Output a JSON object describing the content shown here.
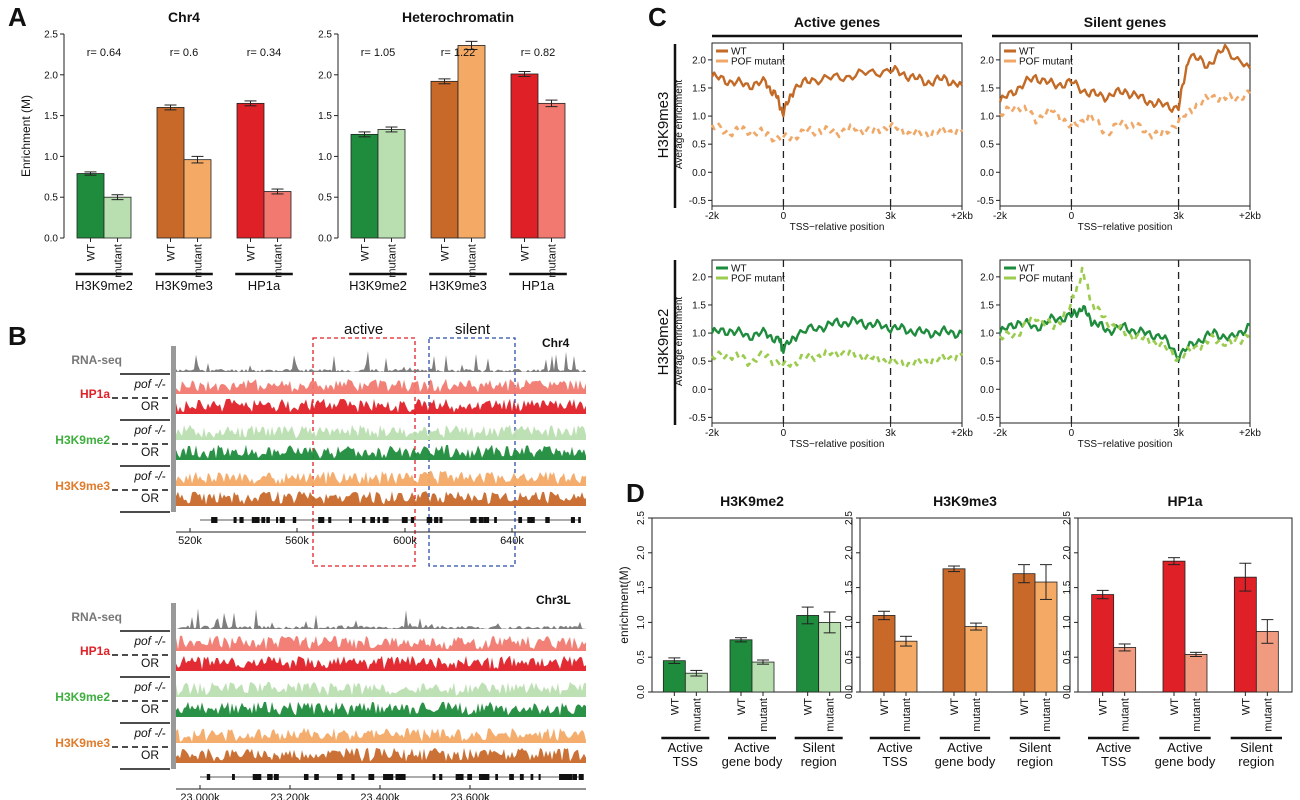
{
  "panel_labels": [
    "A",
    "B",
    "C",
    "D"
  ],
  "colors": {
    "h3k9me2_wt": "#1e8c3c",
    "h3k9me2_mut": "#b9dfb0",
    "h3k9me3_wt": "#c8692a",
    "h3k9me3_mut": "#f4a965",
    "hp1a_wt": "#e02027",
    "hp1a_mut": "#f2796f",
    "hp1a_mut_d": "#f09a80",
    "c_me3_wt": "#c26a26",
    "c_me3_mut": "#f0a868",
    "c_me2_wt": "#1e8c3c",
    "c_me2_mut": "#9ccc4f",
    "rnaseq": "#777777",
    "active_box": "#e02027",
    "silent_box": "#2b4fa8"
  },
  "panel_b": {
    "region_labels": {
      "active": "active",
      "silent": "silent"
    },
    "chromosomes": [
      {
        "name": "Chr4",
        "ticks": [
          "520k",
          "560k",
          "600k",
          "640k"
        ]
      },
      {
        "name": "Chr3L",
        "ticks": [
          "23,000k",
          "23,200k",
          "23,400k",
          "23,600k"
        ]
      }
    ],
    "tracks": [
      {
        "label": "RNA-seq",
        "sub": []
      },
      {
        "label": "HP1a",
        "sub": [
          "pof -/-",
          "OR"
        ]
      },
      {
        "label": "H3K9me2",
        "sub": [
          "pof -/-",
          "OR"
        ]
      },
      {
        "label": "H3K9me3",
        "sub": [
          "pof -/-",
          "OR"
        ]
      }
    ]
  },
  "chart_data": [
    {
      "panel": "A",
      "type": "bar",
      "title": "Chr4",
      "ylabel": "Enrichment (M)",
      "ylim": [
        0,
        2.5
      ],
      "yticks": [
        "0.0",
        "0.5",
        "1.0",
        "1.5",
        "2.0",
        "2.5"
      ],
      "groups": [
        "H3K9me2",
        "H3K9me3",
        "HP1a"
      ],
      "bar_labels": [
        "WT",
        "mutant"
      ],
      "r_labels": [
        "r= 0.64",
        "r= 0.6",
        "r= 0.34"
      ],
      "series": [
        {
          "name": "WT",
          "values": [
            0.79,
            1.6,
            1.65
          ],
          "errors": [
            0.02,
            0.03,
            0.03
          ]
        },
        {
          "name": "mutant",
          "values": [
            0.5,
            0.96,
            0.57
          ],
          "errors": [
            0.03,
            0.04,
            0.03
          ]
        }
      ]
    },
    {
      "panel": "A",
      "type": "bar",
      "title": "Heterochromatin",
      "ylim": [
        0,
        2.5
      ],
      "yticks": [
        "0.0",
        "0.5",
        "1.0",
        "1.5",
        "2.0",
        "2.5"
      ],
      "groups": [
        "H3K9me2",
        "H3K9me3",
        "HP1a"
      ],
      "bar_labels": [
        "WT",
        "mutant"
      ],
      "r_labels": [
        "r= 1.05",
        "r= 1.22",
        "r= 0.82"
      ],
      "series": [
        {
          "name": "WT",
          "values": [
            1.27,
            1.92,
            2.01
          ],
          "errors": [
            0.03,
            0.03,
            0.03
          ]
        },
        {
          "name": "mutant",
          "values": [
            1.33,
            2.36,
            1.65
          ],
          "errors": [
            0.03,
            0.05,
            0.04
          ]
        }
      ]
    },
    {
      "panel": "C",
      "type": "line",
      "title": "Active genes",
      "row_label": "H3K9me3",
      "ylabel": "Average enrichment",
      "xlabel": "TSS−relative position",
      "xticks": [
        "-2k",
        "0",
        "3k",
        "+2kb"
      ],
      "ylim": [
        -0.6,
        2.3
      ],
      "yticks": [
        "-0.5",
        "0.0",
        "0.5",
        "1.0",
        "1.5",
        "2.0"
      ],
      "legend": "top-left",
      "series": [
        {
          "name": "WT",
          "x": [
            -2,
            -1.5,
            -1,
            -0.5,
            -0.2,
            0,
            0.3,
            0.8,
            1.5,
            2.2,
            3,
            3.5,
            4,
            4.5,
            5
          ],
          "y": [
            1.7,
            1.62,
            1.55,
            1.6,
            1.35,
            1.05,
            1.5,
            1.65,
            1.68,
            1.75,
            1.82,
            1.72,
            1.6,
            1.66,
            1.55
          ]
        },
        {
          "name": "POF mutant",
          "x": [
            -2,
            -1.5,
            -1,
            -0.5,
            0,
            0.5,
            1,
            1.5,
            2,
            2.5,
            3,
            3.5,
            4,
            4.5,
            5
          ],
          "y": [
            0.8,
            0.72,
            0.75,
            0.68,
            0.58,
            0.7,
            0.75,
            0.72,
            0.78,
            0.72,
            0.82,
            0.7,
            0.68,
            0.74,
            0.72
          ]
        }
      ]
    },
    {
      "panel": "C",
      "type": "line",
      "title": "Silent genes",
      "xlabel": "TSS−relative position",
      "xticks": [
        "-2k",
        "0",
        "3k",
        "+2kb"
      ],
      "ylim": [
        -0.6,
        2.3
      ],
      "yticks": [
        "-0.5",
        "0.0",
        "0.5",
        "1.0",
        "1.5",
        "2.0"
      ],
      "legend": "top-left",
      "series": [
        {
          "name": "WT",
          "x": [
            -2,
            -1.5,
            -1,
            -0.5,
            0,
            0.5,
            1,
            1.5,
            2,
            2.5,
            3,
            3.3,
            3.8,
            4.3,
            5
          ],
          "y": [
            1.25,
            1.5,
            1.7,
            1.55,
            1.6,
            1.4,
            1.35,
            1.45,
            1.3,
            1.2,
            1.15,
            2.1,
            1.9,
            2.2,
            1.85
          ]
        },
        {
          "name": "POF mutant",
          "x": [
            -2,
            -1.5,
            -1,
            -0.5,
            0,
            0.5,
            1,
            1.5,
            2,
            2.5,
            3,
            3.5,
            4,
            4.5,
            5
          ],
          "y": [
            1.0,
            1.2,
            0.95,
            1.1,
            0.8,
            1.0,
            0.7,
            0.9,
            0.75,
            0.65,
            0.9,
            1.2,
            1.35,
            1.3,
            1.4
          ]
        }
      ]
    },
    {
      "panel": "C",
      "type": "line",
      "row_label": "H3K9me2",
      "ylabel": "Average enrichment",
      "xlabel": "TSS−relative position",
      "xticks": [
        "-2k",
        "0",
        "3k",
        "+2kb"
      ],
      "ylim": [
        -0.6,
        2.3
      ],
      "yticks": [
        "-0.5",
        "0.0",
        "0.5",
        "1.0",
        "1.5",
        "2.0"
      ],
      "legend": "top-left",
      "series": [
        {
          "name": "WT",
          "x": [
            -2,
            -1.5,
            -1,
            -0.5,
            -0.1,
            0,
            0.4,
            1,
            1.5,
            2,
            2.5,
            3,
            3.5,
            4,
            4.5,
            5
          ],
          "y": [
            1.0,
            1.05,
            0.95,
            1.0,
            0.85,
            0.7,
            1.0,
            1.1,
            1.18,
            1.2,
            1.15,
            1.1,
            1.05,
            1.0,
            1.02,
            1.0
          ]
        },
        {
          "name": "POF mutant",
          "x": [
            -2,
            -1.5,
            -1,
            -0.5,
            0,
            0.5,
            1,
            1.5,
            2,
            2.5,
            3,
            3.5,
            4,
            4.5,
            5
          ],
          "y": [
            0.55,
            0.62,
            0.5,
            0.6,
            0.4,
            0.55,
            0.6,
            0.65,
            0.62,
            0.55,
            0.5,
            0.45,
            0.5,
            0.55,
            0.6
          ]
        }
      ]
    },
    {
      "panel": "C",
      "type": "line",
      "xlabel": "TSS−relative position",
      "xticks": [
        "-2k",
        "0",
        "3k",
        "+2kb"
      ],
      "ylim": [
        -0.6,
        2.3
      ],
      "yticks": [
        "-0.5",
        "0.0",
        "0.5",
        "1.0",
        "1.5",
        "2.0"
      ],
      "legend": "top-left",
      "series": [
        {
          "name": "WT",
          "x": [
            -2,
            -1.5,
            -1,
            -0.5,
            0,
            0.3,
            0.6,
            1,
            1.5,
            2,
            2.5,
            3,
            3.5,
            4,
            4.5,
            5
          ],
          "y": [
            1.0,
            1.2,
            1.1,
            1.25,
            1.3,
            1.45,
            1.2,
            1.05,
            1.1,
            1.0,
            0.95,
            0.6,
            0.85,
            1.0,
            0.9,
            1.15
          ]
        },
        {
          "name": "POF mutant",
          "x": [
            -2,
            -1.5,
            -1,
            -0.5,
            0,
            0.3,
            0.6,
            1,
            1.5,
            2,
            2.5,
            3,
            3.5,
            4,
            4.5,
            5
          ],
          "y": [
            0.9,
            1.0,
            1.3,
            1.1,
            1.5,
            2.1,
            1.5,
            1.2,
            1.0,
            0.9,
            0.8,
            0.55,
            0.75,
            0.9,
            0.8,
            1.0
          ]
        }
      ]
    },
    {
      "panel": "D",
      "type": "bar",
      "title": "H3K9me2",
      "ylabel": "enrichment(M)",
      "ylim": [
        0,
        2.5
      ],
      "yticks": [
        "0.0",
        "0.5",
        "1.0",
        "1.5",
        "2.0",
        "2.5"
      ],
      "groups": [
        "Active TSS",
        "Active gene body",
        "Silent region"
      ],
      "group_lines": [
        [
          "Active",
          "TSS"
        ],
        [
          "Active",
          "gene body"
        ],
        [
          "Silent",
          "region"
        ]
      ],
      "bar_labels": [
        "WT",
        "mutant"
      ],
      "series": [
        {
          "name": "WT",
          "values": [
            0.45,
            0.75,
            1.1
          ],
          "errors": [
            0.04,
            0.03,
            0.12
          ]
        },
        {
          "name": "mutant",
          "values": [
            0.27,
            0.43,
            1.0
          ],
          "errors": [
            0.04,
            0.03,
            0.15
          ]
        }
      ]
    },
    {
      "panel": "D",
      "type": "bar",
      "title": "H3K9me3",
      "ylim": [
        0,
        2.5
      ],
      "yticks": [
        "0.0",
        "0.5",
        "1.0",
        "1.5",
        "2.0",
        "2.5"
      ],
      "groups": [
        "Active TSS",
        "Active gene body",
        "Silent region"
      ],
      "group_lines": [
        [
          "Active",
          "TSS"
        ],
        [
          "Active",
          "gene body"
        ],
        [
          "Silent",
          "region"
        ]
      ],
      "bar_labels": [
        "WT",
        "mutant"
      ],
      "series": [
        {
          "name": "WT",
          "values": [
            1.1,
            1.77,
            1.7
          ],
          "errors": [
            0.06,
            0.04,
            0.13
          ]
        },
        {
          "name": "mutant",
          "values": [
            0.73,
            0.94,
            1.58
          ],
          "errors": [
            0.07,
            0.05,
            0.25
          ]
        }
      ]
    },
    {
      "panel": "D",
      "type": "bar",
      "title": "HP1a",
      "ylim": [
        0,
        2.5
      ],
      "yticks": [
        "0.0",
        "0.5",
        "1.0",
        "1.5",
        "2.0",
        "2.5"
      ],
      "groups": [
        "Active TSS",
        "Active gene body",
        "Silent region"
      ],
      "group_lines": [
        [
          "Active",
          "TSS"
        ],
        [
          "Active",
          "gene body"
        ],
        [
          "Silent",
          "region"
        ]
      ],
      "bar_labels": [
        "WT",
        "mutant"
      ],
      "series": [
        {
          "name": "WT",
          "values": [
            1.4,
            1.88,
            1.65
          ],
          "errors": [
            0.06,
            0.05,
            0.2
          ]
        },
        {
          "name": "mutant",
          "values": [
            0.64,
            0.54,
            0.87
          ],
          "errors": [
            0.05,
            0.03,
            0.17
          ]
        }
      ]
    }
  ]
}
